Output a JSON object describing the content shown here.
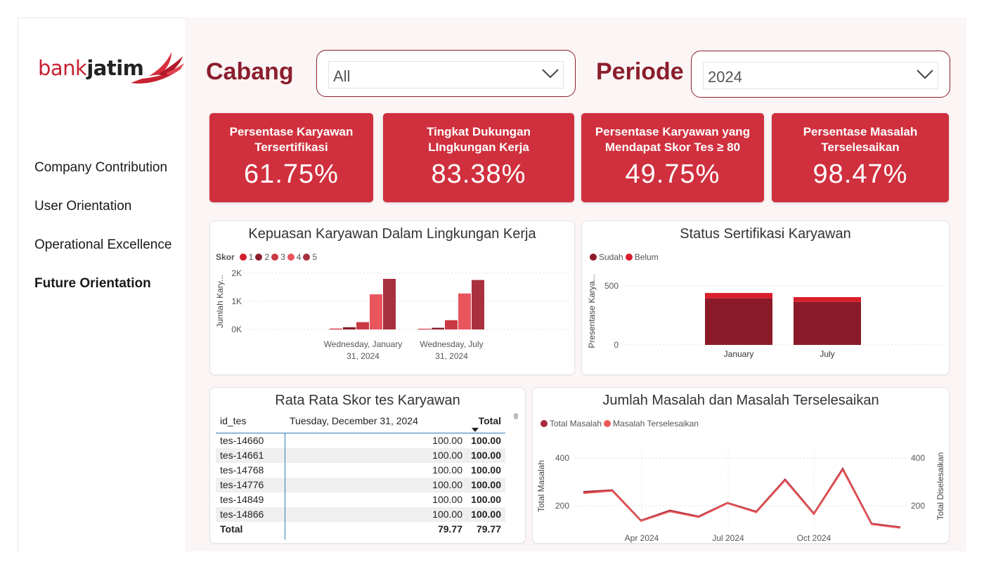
{
  "brand": {
    "bank": "bank",
    "jatim": "jatim"
  },
  "nav": {
    "items": [
      {
        "label": "Company Contribution"
      },
      {
        "label": "User Orientation"
      },
      {
        "label": "Operational Excellence"
      },
      {
        "label": "Future Orientation"
      }
    ],
    "active": "Future Orientation"
  },
  "filters": {
    "cabang": {
      "label": "Cabang",
      "value": "All"
    },
    "periode": {
      "label": "Periode",
      "value": "2024"
    }
  },
  "kpis": [
    {
      "title": "Persentase Karyawan\nTersertifikasi",
      "value": "61.75%"
    },
    {
      "title": "Tingkat Dukungan\nLIngkungan Kerja",
      "value": "83.38%"
    },
    {
      "title": "Persentase Karyawan yang\nMendapat Skor Tes ≥ 80",
      "value": "49.75%"
    },
    {
      "title": "Persentase Masalah\nTerselesaikan",
      "value": "98.47%"
    }
  ],
  "colors": {
    "accent": "#d0303e",
    "dark": "#8b1e2d",
    "s1": "#d41f2b",
    "s2": "#8b1e2d",
    "s3": "#c93a44",
    "s4": "#e8555d",
    "s5": "#a8303f",
    "sudah": "#8b1a28",
    "belum": "#d81e2a",
    "line1": "#a82a38",
    "line2": "#ee5a5a"
  },
  "table": {
    "title": "Rata Rata Skor tes Karyawan",
    "headers": [
      "id_tes",
      "Tuesday, December 31, 2024",
      "Total"
    ],
    "rows": [
      {
        "id": "tes-14660",
        "v": "100.00",
        "t": "100.00"
      },
      {
        "id": "tes-14661",
        "v": "100.00",
        "t": "100.00"
      },
      {
        "id": "tes-14768",
        "v": "100.00",
        "t": "100.00"
      },
      {
        "id": "tes-14776",
        "v": "100.00",
        "t": "100.00"
      },
      {
        "id": "tes-14849",
        "v": "100.00",
        "t": "100.00"
      },
      {
        "id": "tes-14866",
        "v": "100.00",
        "t": "100.00"
      }
    ],
    "total": {
      "label": "Total",
      "v": "79.77",
      "t": "79.77"
    }
  },
  "chart_data": [
    {
      "type": "bar",
      "title": "Kepuasan Karyawan Dalam Lingkungan Kerja",
      "legend_title": "Skor",
      "ylabel": "Jumlah Kary...",
      "ylim": [
        0,
        2000
      ],
      "yticks": [
        "0K",
        "1K",
        "2K"
      ],
      "categories": [
        "Wednesday, January 31, 2024",
        "Wednesday, July 31, 2024"
      ],
      "series": [
        {
          "name": "1",
          "values": [
            30,
            25
          ]
        },
        {
          "name": "2",
          "values": [
            80,
            60
          ]
        },
        {
          "name": "3",
          "values": [
            260,
            330
          ]
        },
        {
          "name": "4",
          "values": [
            1250,
            1280
          ]
        },
        {
          "name": "5",
          "values": [
            1800,
            1760
          ]
        }
      ]
    },
    {
      "type": "bar",
      "stacked": true,
      "title": "Status Sertifikasi Karyawan",
      "ylabel": "Presentase Karya...",
      "ylim": [
        0,
        600
      ],
      "yticks": [
        "0",
        "500"
      ],
      "categories": [
        "January",
        "July"
      ],
      "series": [
        {
          "name": "Sudah",
          "values": [
            395,
            365
          ]
        },
        {
          "name": "Belum",
          "values": [
            45,
            40
          ]
        }
      ]
    },
    {
      "type": "line",
      "title": "Jumlah Masalah dan Masalah Terselesaikan",
      "ylabel": "Total Masalah",
      "y2label": "Total Diselesaikan",
      "ylim": [
        0,
        430
      ],
      "yticks": [
        "200",
        "400"
      ],
      "y2ticks": [
        "200",
        "400"
      ],
      "xticks": [
        "Apr 2024",
        "Jul 2024",
        "Oct 2024"
      ],
      "x": [
        "2024-01",
        "2024-02",
        "2024-03",
        "2024-04",
        "2024-05",
        "2024-06",
        "2024-07",
        "2024-08",
        "2024-09",
        "2024-10",
        "2024-11",
        "2024-12"
      ],
      "series": [
        {
          "name": "Total Masalah",
          "values": [
            258,
            265,
            138,
            180,
            155,
            212,
            175,
            310,
            167,
            355,
            125,
            110
          ]
        },
        {
          "name": "Masalah Terselesaikan",
          "values": [
            252,
            262,
            136,
            176,
            152,
            210,
            172,
            306,
            164,
            350,
            122,
            107
          ]
        }
      ]
    }
  ]
}
